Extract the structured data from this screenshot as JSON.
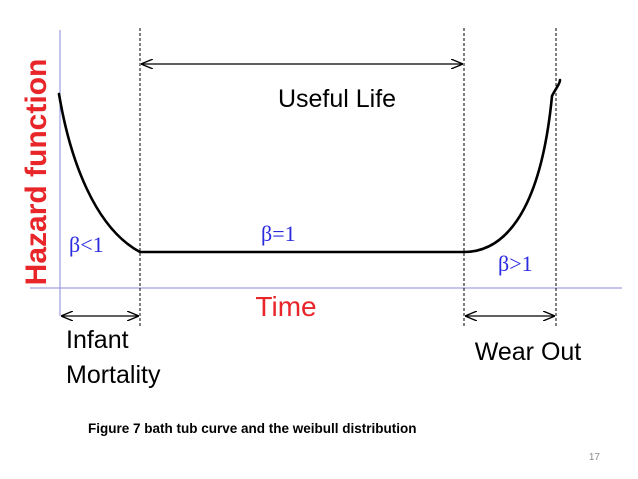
{
  "diagram": {
    "y_axis_label": "Hazard function",
    "x_axis_label": "Time",
    "regions": {
      "useful_life": "Useful Life",
      "infant_line1": "Infant",
      "infant_line2": "Mortality",
      "wear_out": "Wear Out"
    },
    "betas": {
      "decreasing": "β<1",
      "constant": "β=1",
      "increasing": "β>1"
    },
    "colors": {
      "axis_label": "#e8262a",
      "beta_text": "#2a2adf",
      "axis_line": "#8a8ad8",
      "curve": "#000000"
    }
  },
  "caption": "Figure 7 bath tub curve and the weibull distribution",
  "page_number": "17"
}
